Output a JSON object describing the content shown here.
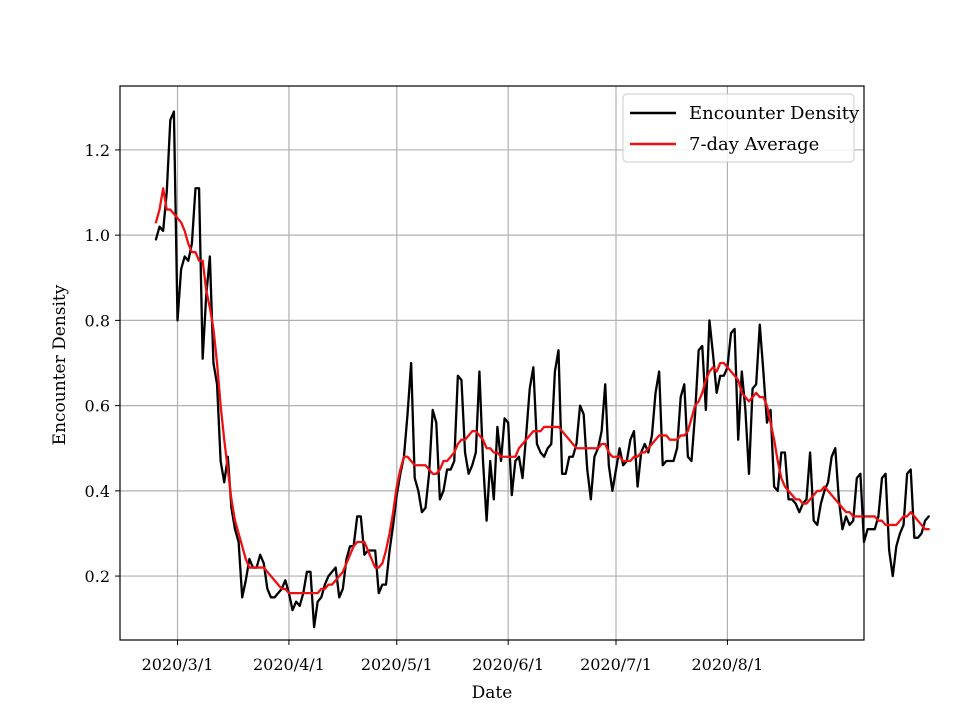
{
  "chart_data": {
    "type": "line",
    "title": "",
    "xlabel": "Date",
    "ylabel": "Encounter Density",
    "x_start": "2020-02-24",
    "x_step_days": 1,
    "xlim": [
      "2020-02-14",
      "2020-09-08"
    ],
    "ylim": [
      0.05,
      1.35
    ],
    "xticks": [
      {
        "date": "2020-03-01",
        "label": "2020/3/1"
      },
      {
        "date": "2020-04-01",
        "label": "2020/4/1"
      },
      {
        "date": "2020-05-01",
        "label": "2020/5/1"
      },
      {
        "date": "2020-06-01",
        "label": "2020/6/1"
      },
      {
        "date": "2020-07-01",
        "label": "2020/7/1"
      },
      {
        "date": "2020-08-01",
        "label": "2020/8/1"
      }
    ],
    "yticks": [
      {
        "value": 0.2,
        "label": "0.2"
      },
      {
        "value": 0.4,
        "label": "0.4"
      },
      {
        "value": 0.6,
        "label": "0.6"
      },
      {
        "value": 0.8,
        "label": "0.8"
      },
      {
        "value": 1.0,
        "label": "1.0"
      },
      {
        "value": 1.2,
        "label": "1.2"
      }
    ],
    "grid": true,
    "legend_position": "top-right",
    "series": [
      {
        "name": "Encounter Density",
        "color": "#000000",
        "values": [
          0.99,
          1.02,
          1.01,
          1.1,
          1.27,
          1.29,
          0.8,
          0.92,
          0.95,
          0.94,
          0.98,
          1.11,
          1.11,
          0.71,
          0.86,
          0.95,
          0.7,
          0.65,
          0.47,
          0.42,
          0.48,
          0.36,
          0.31,
          0.28,
          0.15,
          0.19,
          0.24,
          0.22,
          0.22,
          0.25,
          0.23,
          0.17,
          0.15,
          0.15,
          0.16,
          0.17,
          0.19,
          0.16,
          0.12,
          0.14,
          0.13,
          0.16,
          0.21,
          0.21,
          0.08,
          0.14,
          0.15,
          0.18,
          0.2,
          0.21,
          0.22,
          0.15,
          0.17,
          0.24,
          0.27,
          0.27,
          0.34,
          0.34,
          0.25,
          0.26,
          0.26,
          0.26,
          0.16,
          0.18,
          0.18,
          0.26,
          0.32,
          0.39,
          0.44,
          0.48,
          0.58,
          0.7,
          0.43,
          0.4,
          0.35,
          0.36,
          0.44,
          0.59,
          0.56,
          0.38,
          0.4,
          0.45,
          0.45,
          0.47,
          0.67,
          0.66,
          0.49,
          0.44,
          0.46,
          0.49,
          0.68,
          0.47,
          0.33,
          0.47,
          0.38,
          0.55,
          0.47,
          0.57,
          0.56,
          0.39,
          0.47,
          0.48,
          0.43,
          0.53,
          0.64,
          0.69,
          0.51,
          0.49,
          0.48,
          0.5,
          0.51,
          0.68,
          0.73,
          0.44,
          0.44,
          0.48,
          0.48,
          0.51,
          0.6,
          0.58,
          0.45,
          0.38,
          0.48,
          0.5,
          0.54,
          0.65,
          0.46,
          0.4,
          0.45,
          0.5,
          0.46,
          0.47,
          0.52,
          0.54,
          0.41,
          0.49,
          0.51,
          0.49,
          0.53,
          0.63,
          0.68,
          0.46,
          0.47,
          0.47,
          0.47,
          0.5,
          0.62,
          0.65,
          0.48,
          0.47,
          0.58,
          0.73,
          0.74,
          0.59,
          0.8,
          0.72,
          0.63,
          0.67,
          0.67,
          0.69,
          0.77,
          0.78,
          0.52,
          0.68,
          0.59,
          0.44,
          0.64,
          0.65,
          0.79,
          0.68,
          0.56,
          0.59,
          0.41,
          0.4,
          0.49,
          0.49,
          0.38,
          0.38,
          0.37,
          0.35,
          0.37,
          0.38,
          0.49,
          0.33,
          0.32,
          0.37,
          0.4,
          0.42,
          0.48,
          0.5,
          0.38,
          0.31,
          0.34,
          0.32,
          0.33,
          0.43,
          0.44,
          0.28,
          0.31,
          0.31,
          0.31,
          0.34,
          0.43,
          0.44,
          0.26,
          0.2,
          0.27,
          0.3,
          0.32,
          0.44,
          0.45,
          0.29,
          0.29,
          0.3,
          0.33,
          0.34
        ]
      },
      {
        "name": "7-day Average",
        "color": "#ee1111",
        "values": [
          1.03,
          1.06,
          1.11,
          1.06,
          1.06,
          1.05,
          1.04,
          1.03,
          1.01,
          0.98,
          0.96,
          0.96,
          0.94,
          0.94,
          0.87,
          0.83,
          0.78,
          0.7,
          0.6,
          0.52,
          0.45,
          0.38,
          0.33,
          0.3,
          0.27,
          0.24,
          0.22,
          0.22,
          0.22,
          0.22,
          0.22,
          0.21,
          0.2,
          0.19,
          0.18,
          0.17,
          0.17,
          0.16,
          0.16,
          0.16,
          0.16,
          0.16,
          0.16,
          0.16,
          0.16,
          0.16,
          0.17,
          0.17,
          0.18,
          0.18,
          0.19,
          0.2,
          0.21,
          0.23,
          0.25,
          0.27,
          0.28,
          0.28,
          0.28,
          0.26,
          0.24,
          0.22,
          0.22,
          0.23,
          0.26,
          0.3,
          0.35,
          0.41,
          0.45,
          0.48,
          0.48,
          0.47,
          0.46,
          0.46,
          0.46,
          0.46,
          0.45,
          0.44,
          0.44,
          0.45,
          0.47,
          0.47,
          0.48,
          0.49,
          0.51,
          0.52,
          0.52,
          0.53,
          0.54,
          0.54,
          0.53,
          0.52,
          0.5,
          0.5,
          0.49,
          0.49,
          0.48,
          0.48,
          0.48,
          0.48,
          0.48,
          0.5,
          0.51,
          0.52,
          0.53,
          0.54,
          0.54,
          0.54,
          0.55,
          0.55,
          0.55,
          0.55,
          0.55,
          0.54,
          0.53,
          0.52,
          0.51,
          0.5,
          0.5,
          0.5,
          0.5,
          0.5,
          0.5,
          0.5,
          0.51,
          0.51,
          0.49,
          0.48,
          0.48,
          0.48,
          0.47,
          0.47,
          0.47,
          0.48,
          0.48,
          0.49,
          0.49,
          0.5,
          0.51,
          0.52,
          0.53,
          0.53,
          0.53,
          0.52,
          0.52,
          0.52,
          0.53,
          0.53,
          0.54,
          0.57,
          0.6,
          0.61,
          0.63,
          0.66,
          0.68,
          0.69,
          0.68,
          0.7,
          0.7,
          0.69,
          0.68,
          0.67,
          0.66,
          0.63,
          0.62,
          0.61,
          0.62,
          0.63,
          0.62,
          0.62,
          0.6,
          0.56,
          0.52,
          0.47,
          0.43,
          0.41,
          0.4,
          0.39,
          0.38,
          0.38,
          0.37,
          0.37,
          0.38,
          0.39,
          0.4,
          0.4,
          0.41,
          0.4,
          0.39,
          0.38,
          0.37,
          0.36,
          0.35,
          0.35,
          0.34,
          0.34,
          0.34,
          0.34,
          0.34,
          0.34,
          0.34,
          0.33,
          0.33,
          0.32,
          0.32,
          0.32,
          0.32,
          0.33,
          0.34,
          0.34,
          0.35,
          0.34,
          0.33,
          0.32,
          0.31,
          0.31
        ]
      }
    ]
  }
}
